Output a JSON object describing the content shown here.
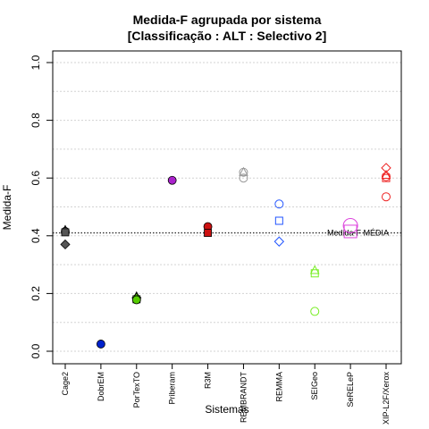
{
  "chart_data": {
    "type": "scatter",
    "title_line1": "Medida-F agrupada por sistema",
    "title_line2": "[Classificação : ALT : Selectivo 2]",
    "xlabel": "Sistemas",
    "ylabel": "Medida-F",
    "ylim": [
      0,
      1
    ],
    "yticks": [
      "0.0",
      "0.2",
      "0.4",
      "0.6",
      "0.8",
      "1.0"
    ],
    "grid": true,
    "categories": [
      "Cage2",
      "DobrEM",
      "PorTexTO",
      "Priberam",
      "R3M",
      "REMBRANDT",
      "REMMA",
      "SEIGeo",
      "SeRELeP",
      "XIP-L2F/Xerox"
    ],
    "series": [
      {
        "category": "Cage2",
        "color": "#555555",
        "filled": true,
        "points": [
          {
            "shape": "triangle",
            "value": 0.42
          },
          {
            "shape": "circle",
            "value": 0.415
          },
          {
            "shape": "square",
            "value": 0.412
          },
          {
            "shape": "diamond",
            "value": 0.37
          }
        ]
      },
      {
        "category": "DobrEM",
        "color": "#0022cc",
        "filled": true,
        "points": [
          {
            "shape": "circle",
            "value": 0.025
          }
        ]
      },
      {
        "category": "PorTexTO",
        "color": "#55cc00",
        "filled": true,
        "points": [
          {
            "shape": "triangle",
            "value": 0.19
          },
          {
            "shape": "diamond",
            "value": 0.185
          },
          {
            "shape": "square",
            "value": 0.18
          },
          {
            "shape": "circle",
            "value": 0.178
          }
        ]
      },
      {
        "category": "Priberam",
        "color": "#aa22cc",
        "filled": true,
        "points": [
          {
            "shape": "circle",
            "value": 0.592
          }
        ]
      },
      {
        "category": "R3M",
        "color": "#cc1111",
        "filled": true,
        "points": [
          {
            "shape": "circle",
            "value": 0.432
          },
          {
            "shape": "square",
            "value": 0.41
          }
        ]
      },
      {
        "category": "REMBRANDT",
        "color": "#999999",
        "filled": false,
        "points": [
          {
            "shape": "circle",
            "value": 0.62
          },
          {
            "shape": "triangle",
            "value": 0.62
          },
          {
            "shape": "circle",
            "value": 0.6
          }
        ]
      },
      {
        "category": "REMMA",
        "color": "#2255ff",
        "filled": false,
        "points": [
          {
            "shape": "circle",
            "value": 0.51
          },
          {
            "shape": "square",
            "value": 0.452
          },
          {
            "shape": "diamond",
            "value": 0.38
          }
        ]
      },
      {
        "category": "SEIGeo",
        "color": "#77ee22",
        "filled": false,
        "points": [
          {
            "shape": "triangle",
            "value": 0.28
          },
          {
            "shape": "square",
            "value": 0.27
          },
          {
            "shape": "circle",
            "value": 0.138
          }
        ]
      },
      {
        "category": "SeRELeP",
        "color": "#dd44dd",
        "filled": false,
        "points": [
          {
            "shape": "bigcircle",
            "value": 0.435
          },
          {
            "shape": "bigsquare",
            "value": 0.415
          }
        ]
      },
      {
        "category": "XIP-L2F/Xerox",
        "color": "#ee2222",
        "filled": false,
        "points": [
          {
            "shape": "diamond",
            "value": 0.635
          },
          {
            "shape": "triangle",
            "value": 0.61
          },
          {
            "shape": "circle",
            "value": 0.605
          },
          {
            "shape": "square",
            "value": 0.6
          },
          {
            "shape": "circle",
            "value": 0.535
          }
        ]
      }
    ],
    "reference_line": {
      "value": 0.41,
      "label": "Medida-F MÉDIA"
    }
  }
}
